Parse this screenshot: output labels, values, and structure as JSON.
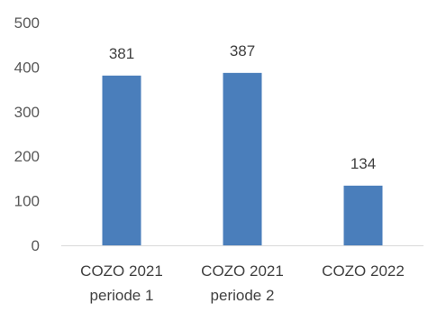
{
  "chart_data": {
    "type": "bar",
    "categories": [
      [
        "COZO 2021",
        "periode 1"
      ],
      [
        "COZO 2021",
        "periode 2"
      ],
      [
        "COZO 2022"
      ]
    ],
    "values": [
      381,
      387,
      134
    ],
    "data_labels": [
      "381",
      "387",
      "134"
    ],
    "y_ticks": [
      "0",
      "100",
      "200",
      "300",
      "400",
      "500"
    ],
    "ylim": [
      0,
      500
    ],
    "grid": false,
    "legend": "none",
    "title": "",
    "xlabel": "",
    "ylabel": "",
    "bar_color": "#4a7ebb",
    "axis_color": "#d9d9d9"
  }
}
